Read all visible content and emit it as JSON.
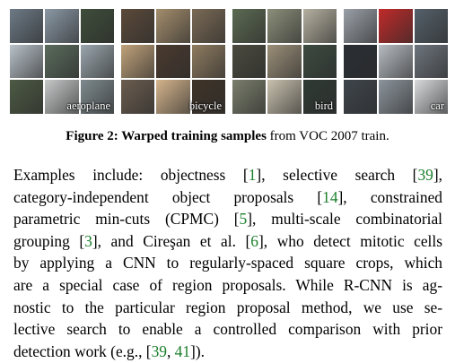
{
  "figure": {
    "panels": [
      {
        "label": "aeroplane",
        "tiles": [
          "#6d7a86",
          "#8a98a4",
          "#3e4d3a",
          "#b8c2c9",
          "#5a6b5c",
          "#9aa6ad",
          "#4d5a44",
          "#c5c9c8",
          "#7e8a8e"
        ]
      },
      {
        "label": "bicycle",
        "tiles": [
          "#5b4a3a",
          "#a38d6c",
          "#7a6a55",
          "#c0a27a",
          "#4a3a2e",
          "#8e7b60",
          "#6b5d4f",
          "#d4b48c",
          "#3f3428"
        ]
      },
      {
        "label": "bird",
        "tiles": [
          "#5c6a52",
          "#8c8f7a",
          "#b5b0a0",
          "#4a4a3e",
          "#9b8f78",
          "#3c4a40",
          "#7a7e6c",
          "#c9c1ae",
          "#2f3a34"
        ]
      },
      {
        "label": "car",
        "tiles": [
          "#9aa0a8",
          "#c02a2a",
          "#55606a",
          "#2a2e34",
          "#b7bcc2",
          "#6d747c",
          "#3e454c",
          "#8c949c",
          "#d8dadc"
        ]
      }
    ],
    "caption_bold": "Figure 2: Warped training samples",
    "caption_rest": " from VOC 2007 train."
  },
  "paragraph": {
    "l1a": "Examples include: objectness [",
    "c1": "1",
    "l1b": "], selective search [",
    "c2": "39",
    "l1c": "],",
    "l2a": "category-independent object proposals [",
    "c3": "14",
    "l2b": "], constrained",
    "l3a": "parametric min-cuts (CPMC) [",
    "c4": "5",
    "l3b": "], multi-scale combinatorial",
    "l4a": "grouping [",
    "c5": "3",
    "l4b": "], and Cireşan et al. [",
    "c6": "6",
    "l4c": "], who detect mitotic cells",
    "l5": "by applying a CNN to regularly-spaced square crops, which",
    "l6": "are a special case of region proposals. While R-CNN is ag-",
    "l7": "nostic to the particular region proposal method, we use se-",
    "l8": "lective search to enable a controlled comparison with prior",
    "l9a": "detection work (e.g., [",
    "c7": "39",
    "l9b": ", ",
    "c8": "41",
    "l9c": "])."
  }
}
